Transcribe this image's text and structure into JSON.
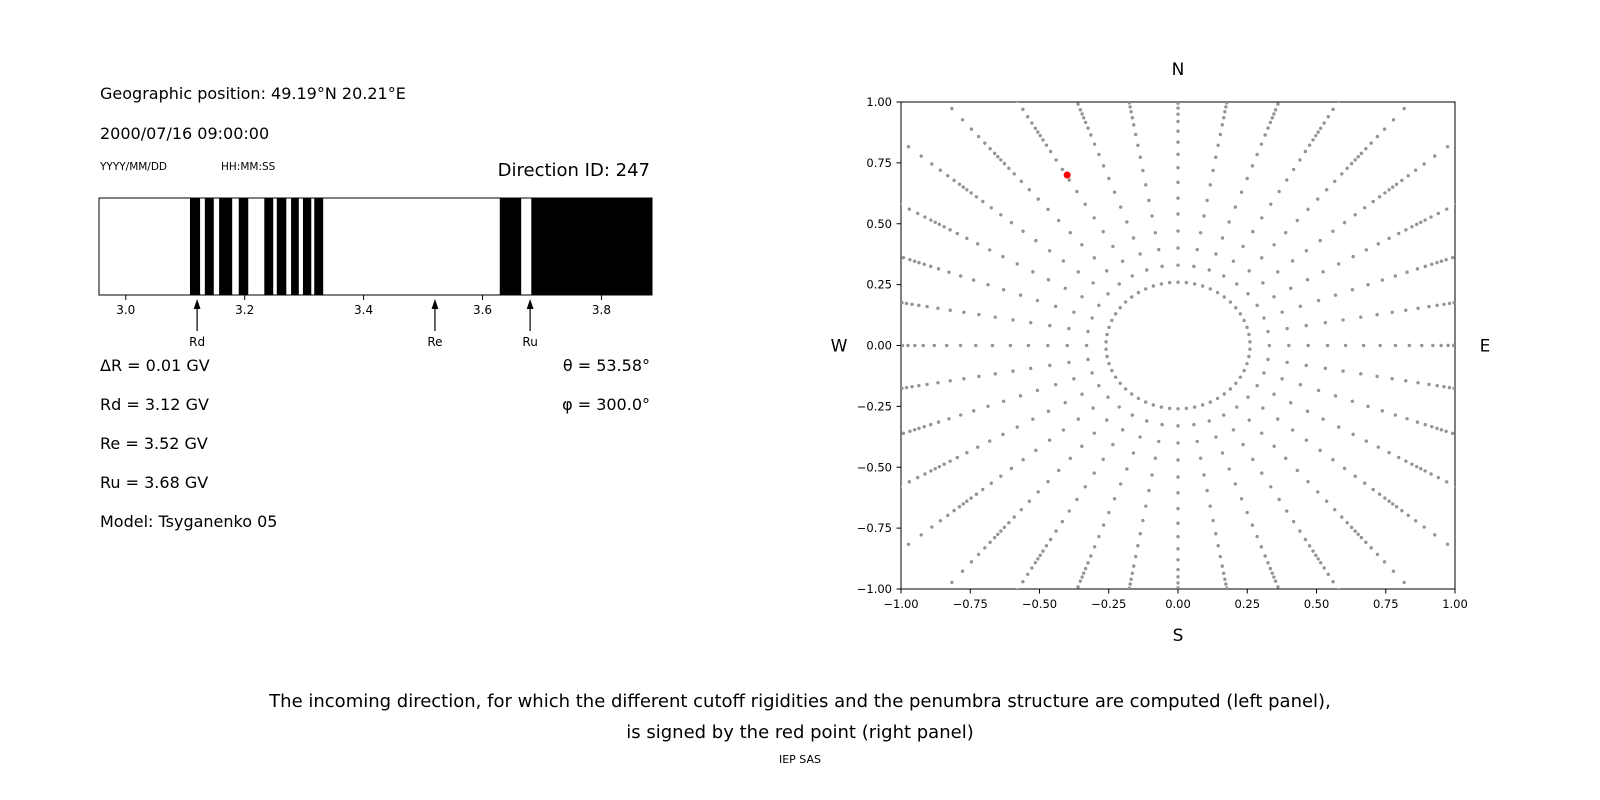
{
  "left_panel": {
    "geo_position": "Geographic position: 49.19°N 20.21°E",
    "datetime": "2000/07/16 09:00:00",
    "date_format": "YYYY/MM/DD",
    "time_format": "HH:MM:SS",
    "direction_id": "Direction ID: 247",
    "info_lines_left": [
      "ΔR = 0.01 GV",
      "Rd = 3.12 GV",
      "Re = 3.52 GV",
      "Ru = 3.68 GV",
      "Model: Tsyganenko 05"
    ],
    "info_lines_right": [
      "θ = 53.58°",
      "φ = 300.0°"
    ]
  },
  "right_panel": {
    "compass": {
      "top": "N",
      "bottom": "S",
      "left": "W",
      "right": "E"
    }
  },
  "caption": {
    "line1": "The incoming direction, for which the different cutoff rigidities and the penumbra structure are computed (left panel),",
    "line2": "is signed by the red point (right panel)",
    "credit": "IEP SAS"
  },
  "chart_data": [
    {
      "type": "bar",
      "name": "penumbra-structure",
      "xlim": [
        2.955,
        3.885
      ],
      "xticks": [
        3.0,
        3.2,
        3.4,
        3.6,
        3.8
      ],
      "xtick_labels": [
        "3.0",
        "3.2",
        "3.4",
        "3.6",
        "3.8"
      ],
      "band_color": "#000000",
      "allowed_bands_gv": [
        [
          3.108,
          3.125
        ],
        [
          3.133,
          3.148
        ],
        [
          3.157,
          3.179
        ],
        [
          3.19,
          3.206
        ],
        [
          3.233,
          3.248
        ],
        [
          3.254,
          3.27
        ],
        [
          3.278,
          3.291
        ],
        [
          3.298,
          3.312
        ],
        [
          3.317,
          3.332
        ],
        [
          3.629,
          3.665
        ],
        [
          3.682,
          3.885
        ]
      ],
      "markers": [
        {
          "label": "Rd",
          "value_gv": 3.12
        },
        {
          "label": "Re",
          "value_gv": 3.52
        },
        {
          "label": "Ru",
          "value_gv": 3.68
        }
      ]
    },
    {
      "type": "scatter",
      "name": "incoming-direction-map",
      "xlim": [
        -1,
        1
      ],
      "ylim": [
        -1,
        1
      ],
      "xticks": [
        -1,
        -0.75,
        -0.5,
        -0.25,
        0,
        0.25,
        0.5,
        0.75,
        1
      ],
      "xtick_labels": [
        "−1.00",
        "−0.75",
        "−0.50",
        "−0.25",
        "0.00",
        "0.25",
        "0.50",
        "0.75",
        "1.00"
      ],
      "yticks": [
        1,
        0.75,
        0.5,
        0.25,
        0,
        -0.25,
        -0.5,
        -0.75,
        -1
      ],
      "ytick_labels": [
        "1.00",
        "0.75",
        "0.50",
        "0.25",
        "0.00",
        "−0.25",
        "−0.50",
        "−0.75",
        "−1.00"
      ],
      "compass": {
        "top": "N",
        "bottom": "S",
        "left": "W",
        "right": "E"
      },
      "grid_dots": {
        "azimuth_start_deg": 0,
        "azimuth_step_deg": 10,
        "azimuth_count": 36,
        "ray_radii": [
          0.33,
          0.4,
          0.47,
          0.54,
          0.605,
          0.67,
          0.73,
          0.785,
          0.835,
          0.88,
          0.92,
          0.95,
          0.975,
          0.995,
          1.012,
          1.03,
          1.055,
          1.085,
          1.12,
          1.16,
          1.21,
          1.27,
          1.34,
          1.41
        ],
        "inner_ring": {
          "radius": 0.26,
          "count": 54
        },
        "color": "#949494",
        "dot_radius_px": 1.7
      },
      "red_point": {
        "x": -0.4,
        "y": 0.7,
        "color": "#ff0000",
        "radius_px": 3.5
      }
    }
  ]
}
